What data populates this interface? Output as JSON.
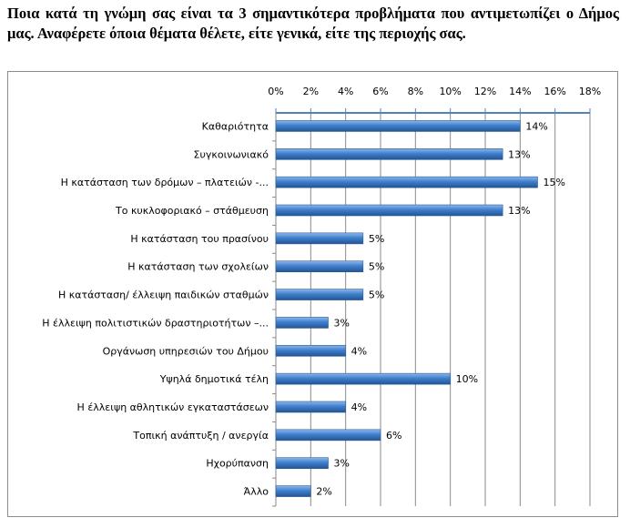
{
  "title": "Ποια κατά τη γνώμη σας είναι τα 3 σημαντικότερα προβλήματα που αντιμετωπίζει ο Δήμος μας. Αναφέρετε όποια θέματα θέλετε, είτε γενικά, είτε της περιοχής σας.",
  "chart_data": {
    "type": "bar",
    "orientation": "horizontal",
    "xlim": [
      0,
      18
    ],
    "ticks": [
      "0%",
      "2%",
      "4%",
      "6%",
      "8%",
      "10%",
      "12%",
      "14%",
      "16%",
      "18%"
    ],
    "tick_values": [
      0,
      2,
      4,
      6,
      8,
      10,
      12,
      14,
      16,
      18
    ],
    "categories": [
      "Καθαριότητα",
      "Συγκοινωνιακό",
      "Η κατάσταση των δρόμων – πλατειών -...",
      "Το κυκλοφοριακό – στάθμευση",
      "Η κατάσταση του πρασίνου",
      "Η κατάσταση των σχολείων",
      "Η κατάσταση/ έλλειψη παιδικών σταθμών",
      "Η έλλειψη πολιτιστικών δραστηριοτήτων –...",
      "Οργάνωση υπηρεσιών του Δήμου",
      "Υψηλά δημοτικά τέλη",
      "Η έλλειψη αθλητικών εγκαταστάσεων",
      "Τοπική ανάπτυξη / ανεργία",
      "Ηχορύπανση",
      "Άλλο"
    ],
    "values": [
      14,
      13,
      15,
      13,
      5,
      5,
      5,
      3,
      4,
      10,
      4,
      6,
      3,
      2
    ],
    "data_labels": [
      "14%",
      "13%",
      "15%",
      "13%",
      "5%",
      "5%",
      "5%",
      "3%",
      "4%",
      "10%",
      "4%",
      "6%",
      "3%",
      "2%"
    ],
    "grid": true,
    "axis_position": "top",
    "bar_color": "#3f7fcf"
  }
}
